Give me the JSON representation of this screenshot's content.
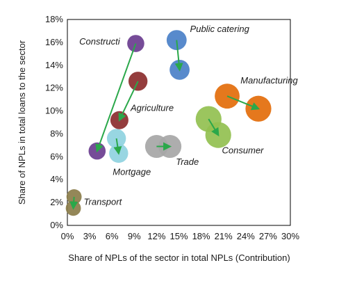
{
  "chart_data": {
    "type": "scatter",
    "subtype": "bubble-with-arrows",
    "title": "",
    "xlabel": "Share of NPLs of the sector in total NPLs (Contribution)",
    "ylabel": "Share of NPLs in total loans to the sector",
    "xlim": [
      0,
      30
    ],
    "ylim": [
      0,
      18
    ],
    "x_tick_labels": [
      "0%",
      "3%",
      "6%",
      "9%",
      "12%",
      "15%",
      "18%",
      "21%",
      "24%",
      "27%",
      "30%"
    ],
    "y_tick_labels": [
      "0%",
      "2%",
      "4%",
      "6%",
      "8%",
      "10%",
      "12%",
      "14%",
      "16%",
      "18%"
    ],
    "grid": false,
    "legend": "none",
    "arrow_color": "#2aa84a",
    "series": [
      {
        "name": "Constructi",
        "color": "#6a3d8f",
        "from": {
          "x": 9.2,
          "y": 15.9,
          "size": 0.9
        },
        "to": {
          "x": 4.0,
          "y": 6.5,
          "size": 0.9
        }
      },
      {
        "name": "Agriculture",
        "color": "#8b2c2c",
        "from": {
          "x": 9.5,
          "y": 12.6,
          "size": 1.1
        },
        "to": {
          "x": 7.0,
          "y": 9.2,
          "size": 1.0
        }
      },
      {
        "name": "Mortgage",
        "color": "#8fd3e0",
        "from": {
          "x": 6.6,
          "y": 7.6,
          "size": 1.1
        },
        "to": {
          "x": 6.9,
          "y": 6.3,
          "size": 1.1
        }
      },
      {
        "name": "Public catering",
        "color": "#4a80c8",
        "from": {
          "x": 14.7,
          "y": 16.2,
          "size": 1.2
        },
        "to": {
          "x": 15.1,
          "y": 13.6,
          "size": 1.2
        }
      },
      {
        "name": "Manufacturing",
        "color": "#e36c0a",
        "from": {
          "x": 21.5,
          "y": 11.3,
          "size": 1.7
        },
        "to": {
          "x": 25.7,
          "y": 10.2,
          "size": 1.8
        }
      },
      {
        "name": "Consumer",
        "color": "#92c050",
        "from": {
          "x": 19.0,
          "y": 9.3,
          "size": 1.8
        },
        "to": {
          "x": 20.3,
          "y": 7.9,
          "size": 1.8
        }
      },
      {
        "name": "Trade",
        "color": "#a6a6a6",
        "from": {
          "x": 12.0,
          "y": 6.9,
          "size": 1.5
        },
        "to": {
          "x": 13.8,
          "y": 6.9,
          "size": 1.5
        }
      },
      {
        "name": "Transport",
        "color": "#8b7d4a",
        "from": {
          "x": 0.9,
          "y": 2.5,
          "size": 0.7
        },
        "to": {
          "x": 0.8,
          "y": 1.5,
          "size": 0.7
        }
      }
    ],
    "annotations": [
      {
        "text": "Constructi",
        "x": 1.6,
        "y": 15.8
      },
      {
        "text": "Public catering",
        "x": 16.5,
        "y": 16.9
      },
      {
        "text": "Manufacturing",
        "x": 23.3,
        "y": 12.4
      },
      {
        "text": "Agriculture",
        "x": 8.5,
        "y": 10.0
      },
      {
        "text": "Consumer",
        "x": 20.8,
        "y": 6.3
      },
      {
        "text": "Trade",
        "x": 14.6,
        "y": 5.3
      },
      {
        "text": "Mortgage",
        "x": 6.1,
        "y": 4.4
      },
      {
        "text": "Transport",
        "x": 2.2,
        "y": 1.8
      }
    ]
  }
}
